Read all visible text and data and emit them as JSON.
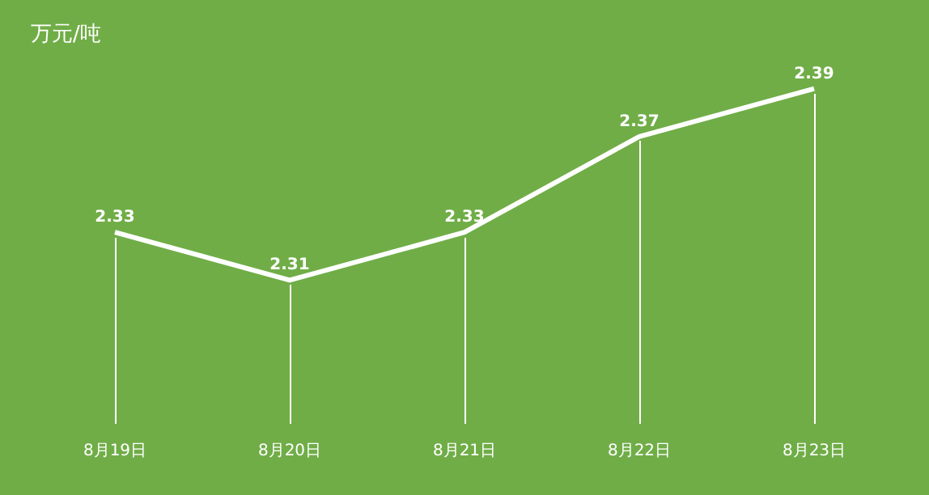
{
  "chart_data": {
    "type": "line",
    "title": "万元/吨",
    "categories": [
      "8月19日",
      "8月20日",
      "8月21日",
      "8月22日",
      "8月23日"
    ],
    "series": [
      {
        "color": "#ffffff",
        "values": [
          2.33,
          2.31,
          2.33,
          2.37,
          2.39
        ]
      }
    ],
    "tick_labels": "x",
    "data_labels": true,
    "grid": false,
    "marker": "none",
    "line_style": "solid"
  }
}
